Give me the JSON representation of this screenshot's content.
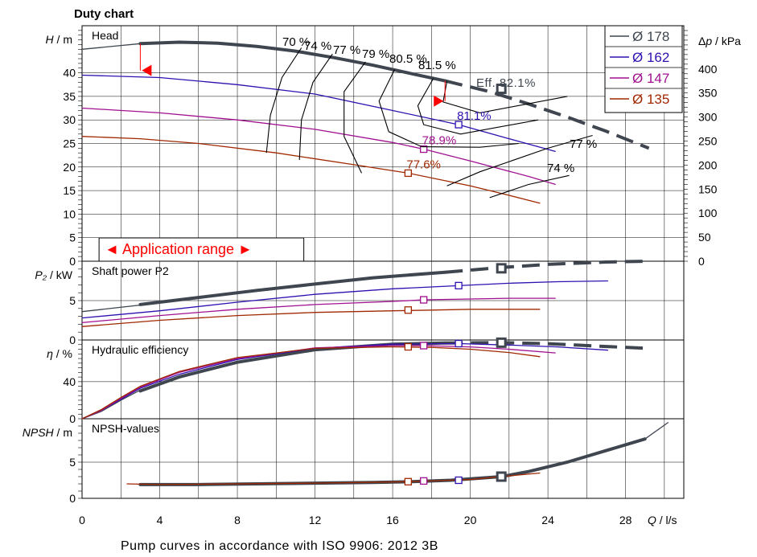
{
  "title": "Duty chart",
  "footer": "Pump curves in accordance with ISO 9906: 2012 3B",
  "colors": {
    "d178": "#3f4650",
    "d162": "#3010b0",
    "d147": "#a01090",
    "d135": "#a02800",
    "red": "#ff0000",
    "grid": "#000000"
  },
  "legend": [
    {
      "label": "Ø 178",
      "color_key": "d178"
    },
    {
      "label": "Ø 162",
      "color_key": "d162"
    },
    {
      "label": "Ø 147",
      "color_key": "d147"
    },
    {
      "label": "Ø 135",
      "color_key": "d135"
    }
  ],
  "application_range_label": "◄ Application range ►",
  "eff_label": "Eff.  82.1%",
  "chart_data": {
    "type": "line",
    "x": {
      "label": "Q / l/s",
      "range": [
        0,
        31
      ],
      "ticks": [
        0,
        4,
        8,
        12,
        16,
        20,
        24,
        28
      ]
    },
    "application_range": [
      1,
      11.3
    ],
    "panels": [
      {
        "id": "head",
        "name": "Head",
        "ylabel_left": "H / m",
        "ylabel_right": "Δp / kPa",
        "yrange": [
          0,
          50
        ],
        "yticks": [
          0,
          5,
          10,
          15,
          20,
          25,
          30,
          35,
          40
        ],
        "right_range": [
          0,
          490
        ],
        "right_ticks": [
          0,
          50,
          100,
          150,
          200,
          250,
          300,
          350,
          400
        ],
        "series": [
          {
            "name": "Ø 178",
            "color_key": "d178",
            "thin": [
              [
                0,
                45
              ],
              [
                3,
                46.2
              ],
              [
                5,
                46.5
              ],
              [
                7,
                46.3
              ],
              [
                9,
                45.6
              ],
              [
                11,
                44.6
              ],
              [
                13,
                43.2
              ],
              [
                15,
                41.6
              ],
              [
                17,
                39.8
              ],
              [
                18.7,
                38.3
              ]
            ],
            "thick": [
              [
                3,
                46.2
              ],
              [
                5,
                46.5
              ],
              [
                7,
                46.3
              ],
              [
                9,
                45.6
              ],
              [
                11,
                44.6
              ],
              [
                13,
                43.2
              ],
              [
                15,
                41.6
              ],
              [
                17,
                39.8
              ],
              [
                18.7,
                38.3
              ]
            ],
            "dashed": [
              [
                18.7,
                38.3
              ],
              [
                21,
                36
              ],
              [
                23,
                33.4
              ],
              [
                25,
                30.6
              ],
              [
                27,
                27.6
              ],
              [
                29.2,
                24
              ]
            ]
          },
          {
            "name": "Ø 162",
            "color_key": "d162",
            "thin": [
              [
                0,
                39.5
              ],
              [
                4,
                39
              ],
              [
                8,
                37.5
              ],
              [
                12,
                35.5
              ],
              [
                16,
                32
              ],
              [
                19.4,
                29
              ],
              [
                22,
                26
              ],
              [
                24.4,
                23.3
              ]
            ]
          },
          {
            "name": "Ø 147",
            "color_key": "d147",
            "thin": [
              [
                0,
                32.5
              ],
              [
                4,
                31.5
              ],
              [
                8,
                30
              ],
              [
                12,
                28
              ],
              [
                16,
                25.2
              ],
              [
                17.6,
                23.8
              ],
              [
                20,
                21.3
              ],
              [
                23,
                18
              ],
              [
                24.4,
                16.3
              ]
            ]
          },
          {
            "name": "Ø 135",
            "color_key": "d135",
            "thin": [
              [
                0,
                26.5
              ],
              [
                3,
                26
              ],
              [
                6,
                25
              ],
              [
                10,
                23
              ],
              [
                14,
                20.5
              ],
              [
                16.8,
                18.7
              ],
              [
                20,
                16
              ],
              [
                22,
                14
              ],
              [
                23.6,
                12.3
              ]
            ]
          }
        ],
        "points": [
          {
            "q": 21.6,
            "y": 36.6,
            "color_key": "d178",
            "size": "large"
          },
          {
            "q": 19.4,
            "y": 29,
            "color_key": "d162",
            "label": "81.1%"
          },
          {
            "q": 17.6,
            "y": 23.8,
            "color_key": "d147",
            "label": "78.9%"
          },
          {
            "q": 16.8,
            "y": 18.7,
            "color_key": "d135",
            "label": "77.6%"
          }
        ],
        "iso_labels": [
          "70 %",
          "74 %",
          "77 %",
          "79 %",
          "80.5 %",
          "81.5 %",
          "77 %",
          "74 %"
        ]
      },
      {
        "id": "power",
        "name": "Shaft power P2",
        "ylabel_left": "P₂ / kW",
        "yrange": [
          0,
          10
        ],
        "yticks": [
          0,
          5
        ],
        "series": [
          {
            "name": "Ø 178",
            "color_key": "d178",
            "thin": [
              [
                0,
                3.6
              ],
              [
                4,
                4.7
              ],
              [
                8,
                5.9
              ],
              [
                12,
                7
              ],
              [
                16,
                8.1
              ],
              [
                18.7,
                8.6
              ]
            ],
            "thick": [
              [
                3,
                4.5
              ],
              [
                6,
                5.4
              ],
              [
                9,
                6.3
              ],
              [
                12,
                7.1
              ],
              [
                15,
                7.9
              ],
              [
                18.7,
                8.6
              ]
            ],
            "dashed": [
              [
                18.7,
                8.6
              ],
              [
                21.6,
                9.2
              ],
              [
                24,
                9.6
              ],
              [
                27,
                9.9
              ],
              [
                29.2,
                10
              ]
            ]
          },
          {
            "name": "Ø 162",
            "color_key": "d162",
            "thin": [
              [
                0,
                2.8
              ],
              [
                4,
                3.7
              ],
              [
                8,
                4.8
              ],
              [
                12,
                5.8
              ],
              [
                16,
                6.5
              ],
              [
                19.4,
                6.9
              ],
              [
                22,
                7.2
              ],
              [
                24.5,
                7.4
              ],
              [
                27.1,
                7.5
              ]
            ]
          },
          {
            "name": "Ø 147",
            "color_key": "d147",
            "thin": [
              [
                0,
                2.2
              ],
              [
                4,
                3.1
              ],
              [
                8,
                3.9
              ],
              [
                12,
                4.5
              ],
              [
                16,
                4.9
              ],
              [
                17.6,
                5.1
              ],
              [
                20,
                5.2
              ],
              [
                22,
                5.3
              ],
              [
                24.4,
                5.3
              ]
            ]
          },
          {
            "name": "Ø 135",
            "color_key": "d135",
            "thin": [
              [
                0,
                1.7
              ],
              [
                4,
                2.5
              ],
              [
                8,
                3.1
              ],
              [
                12,
                3.5
              ],
              [
                16,
                3.7
              ],
              [
                18,
                3.8
              ],
              [
                20,
                3.9
              ],
              [
                22,
                3.9
              ],
              [
                23.6,
                3.9
              ]
            ]
          }
        ],
        "points": [
          {
            "q": 21.6,
            "y": 9.1,
            "color_key": "d178",
            "size": "large"
          },
          {
            "q": 19.4,
            "y": 6.9,
            "color_key": "d162"
          },
          {
            "q": 17.6,
            "y": 5.1,
            "color_key": "d147"
          },
          {
            "q": 16.8,
            "y": 3.8,
            "color_key": "d135"
          }
        ]
      },
      {
        "id": "eff",
        "name": "Hydraulic efficiency",
        "ylabel_left": "η / %",
        "yrange": [
          0,
          85
        ],
        "yticks": [
          0,
          40
        ],
        "series": [
          {
            "name": "Ø 178",
            "color_key": "d178",
            "thin": [
              [
                0,
                0
              ],
              [
                1,
                8
              ],
              [
                2,
                20
              ],
              [
                3,
                31
              ],
              [
                5,
                46
              ],
              [
                8,
                62
              ],
              [
                12,
                75
              ],
              [
                16,
                81
              ],
              [
                18.7,
                81.8
              ]
            ],
            "thick": [
              [
                3,
                30
              ],
              [
                5,
                45
              ],
              [
                8,
                61
              ],
              [
                12,
                74.5
              ],
              [
                16,
                80.5
              ],
              [
                18.7,
                81.8
              ]
            ],
            "dashed": [
              [
                18.7,
                81.8
              ],
              [
                21.6,
                82.1
              ],
              [
                24,
                81
              ],
              [
                27,
                78
              ],
              [
                29.2,
                76
              ]
            ]
          },
          {
            "name": "Ø 162",
            "color_key": "d162",
            "thin": [
              [
                0,
                0
              ],
              [
                1,
                9
              ],
              [
                2,
                21
              ],
              [
                3,
                33
              ],
              [
                5,
                48
              ],
              [
                8,
                64
              ],
              [
                12,
                76
              ],
              [
                16,
                80.5
              ],
              [
                19.4,
                81.1
              ],
              [
                22,
                79.5
              ],
              [
                24.5,
                77.5
              ],
              [
                27.1,
                74
              ]
            ]
          },
          {
            "name": "Ø 147",
            "color_key": "d147",
            "thin": [
              [
                0,
                0
              ],
              [
                1,
                9
              ],
              [
                2,
                22
              ],
              [
                3,
                34
              ],
              [
                5,
                50
              ],
              [
                8,
                65
              ],
              [
                12,
                76.5
              ],
              [
                16,
                79
              ],
              [
                17.6,
                78.9
              ],
              [
                20,
                77.5
              ],
              [
                22,
                75
              ],
              [
                24.4,
                71
              ]
            ]
          },
          {
            "name": "Ø 135",
            "color_key": "d135",
            "thin": [
              [
                0,
                0
              ],
              [
                1,
                10
              ],
              [
                2,
                23
              ],
              [
                3,
                35
              ],
              [
                5,
                51
              ],
              [
                8,
                66
              ],
              [
                12,
                76
              ],
              [
                16,
                77.6
              ],
              [
                18,
                77
              ],
              [
                20,
                75
              ],
              [
                22,
                71.5
              ],
              [
                23.6,
                67
              ]
            ]
          }
        ],
        "points": [
          {
            "q": 21.6,
            "y": 82.1,
            "color_key": "d178",
            "size": "large"
          },
          {
            "q": 19.4,
            "y": 81.1,
            "color_key": "d162"
          },
          {
            "q": 17.6,
            "y": 78.9,
            "color_key": "d147"
          },
          {
            "q": 16.8,
            "y": 77.6,
            "color_key": "d135"
          }
        ]
      },
      {
        "id": "npsh",
        "name": "NPSH-values",
        "ylabel_left": "NPSH / m",
        "yrange": [
          0,
          11
        ],
        "yticks": [
          0,
          5
        ],
        "series": [
          {
            "name": "Ø 178",
            "color_key": "d178",
            "thick": [
              [
                3,
                1.9
              ],
              [
                6,
                1.9
              ],
              [
                9,
                2
              ],
              [
                12,
                2.1
              ],
              [
                15,
                2.2
              ],
              [
                17,
                2.3
              ],
              [
                19,
                2.5
              ],
              [
                21.6,
                3.0
              ],
              [
                23,
                3.7
              ],
              [
                25,
                5
              ],
              [
                27,
                6.6
              ],
              [
                29,
                8.2
              ]
            ],
            "thin": [
              [
                29,
                8.2
              ],
              [
                30.2,
                10.5
              ]
            ]
          },
          {
            "name": "Ø 135",
            "color_key": "d135",
            "thin": [
              [
                2.3,
                2
              ],
              [
                4,
                1.9
              ],
              [
                8,
                2
              ],
              [
                12,
                2.1
              ],
              [
                16.8,
                2.3
              ],
              [
                20,
                2.6
              ],
              [
                23.6,
                3.5
              ]
            ]
          }
        ],
        "points": [
          {
            "q": 21.6,
            "y": 3.0,
            "color_key": "d178",
            "size": "large"
          },
          {
            "q": 19.4,
            "y": 2.5,
            "color_key": "d162"
          },
          {
            "q": 17.6,
            "y": 2.4,
            "color_key": "d147"
          },
          {
            "q": 16.8,
            "y": 2.3,
            "color_key": "d135"
          }
        ]
      }
    ]
  }
}
